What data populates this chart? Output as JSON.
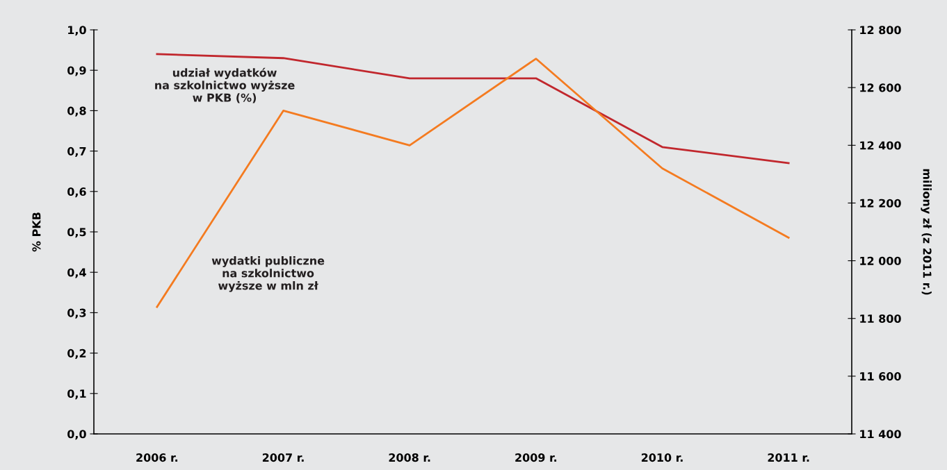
{
  "chart_data": {
    "type": "line",
    "categories": [
      "2006 r.",
      "2007 r.",
      "2008 r.",
      "2009 r.",
      "2010 r.",
      "2011 r."
    ],
    "ylabel": "% PKB",
    "y2label": "miliony zł (z 2011 r.)",
    "ylim": [
      0,
      1.0
    ],
    "yticks": [
      {
        "value": 0,
        "label": "0,0"
      },
      {
        "value": 0.1,
        "label": "0,1"
      },
      {
        "value": 0.2,
        "label": "0,2"
      },
      {
        "value": 0.3,
        "label": "0,3"
      },
      {
        "value": 0.4,
        "label": "0,4"
      },
      {
        "value": 0.5,
        "label": "0,5"
      },
      {
        "value": 0.6,
        "label": "0,6"
      },
      {
        "value": 0.7,
        "label": "0,7"
      },
      {
        "value": 0.8,
        "label": "0,8"
      },
      {
        "value": 0.9,
        "label": "0,9"
      },
      {
        "value": 1.0,
        "label": "1,0"
      }
    ],
    "y2lim": [
      11400,
      12800
    ],
    "y2ticks": [
      {
        "value": 11400,
        "label": "11 400"
      },
      {
        "value": 11600,
        "label": "11 600"
      },
      {
        "value": 11800,
        "label": "11 800"
      },
      {
        "value": 12000,
        "label": "12 000"
      },
      {
        "value": 12200,
        "label": "12 200"
      },
      {
        "value": 12400,
        "label": "12 400"
      },
      {
        "value": 12600,
        "label": "12 600"
      },
      {
        "value": 12800,
        "label": "12 800"
      }
    ],
    "grid": false,
    "legend": false,
    "marker": "none",
    "line_style": "solid",
    "series": [
      {
        "name": "udział wydatków\nna szkolnictwo wyższe\nw PKB (%)",
        "color": "#c1272d",
        "values": [
          0.94,
          0.93,
          0.88,
          0.88,
          0.71,
          0.67
        ]
      },
      {
        "name": "wydatki publiczne\nna szkolnictwo\nwyższe w mln zł",
        "color": "#f47b20",
        "axis": "y2",
        "values": [
          11840,
          12520,
          12400,
          12700,
          12320,
          12080
        ]
      }
    ]
  }
}
